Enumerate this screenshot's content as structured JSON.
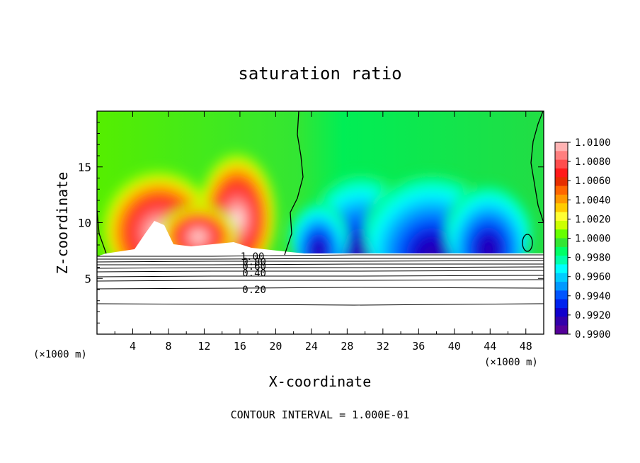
{
  "chart_data": {
    "type": "heatmap",
    "title": "saturation ratio",
    "xlabel": "X-coordinate",
    "ylabel": "Z-coordinate",
    "x_unit_left": "(×1000 m)",
    "x_unit_right": "(×1000 m)",
    "xlim": [
      0,
      50
    ],
    "ylim": [
      0,
      20
    ],
    "x_ticks": [
      "4",
      "8",
      "12",
      "16",
      "20",
      "24",
      "28",
      "32",
      "36",
      "40",
      "44",
      "48"
    ],
    "x_tick_values": [
      4,
      8,
      12,
      16,
      20,
      24,
      28,
      32,
      36,
      40,
      44,
      48
    ],
    "y_ticks": [
      "5",
      "10",
      "15"
    ],
    "y_tick_values": [
      5,
      10,
      15
    ],
    "colorbar": {
      "labels": [
        "1.0100",
        "1.0080",
        "1.0060",
        "1.0040",
        "1.0020",
        "1.0000",
        "0.9980",
        "0.9960",
        "0.9940",
        "0.9920",
        "0.9900"
      ],
      "colors": [
        "#ffb3b3",
        "#ff7f7f",
        "#ff4d4d",
        "#ff1a1a",
        "#e62e00",
        "#ff6600",
        "#ff9900",
        "#ffcc00",
        "#ffff33",
        "#ccff00",
        "#66ff00",
        "#33e633",
        "#00ff66",
        "#00ffaa",
        "#00ffff",
        "#00ccff",
        "#0099ff",
        "#0055ff",
        "#0022ee",
        "#1100cc",
        "#3300aa",
        "#550099"
      ]
    },
    "contour_labels": [
      {
        "text": "1.00",
        "x": 17.4,
        "y": 7.0
      },
      {
        "text": "0.80",
        "x": 17.6,
        "y": 6.5
      },
      {
        "text": "0.60",
        "x": 17.6,
        "y": 6.1
      },
      {
        "text": "0.40",
        "x": 17.6,
        "y": 5.5
      },
      {
        "text": "0.20",
        "x": 17.6,
        "y": 4.0
      }
    ],
    "footer": "CONTOUR INTERVAL = 1.000E-01"
  }
}
